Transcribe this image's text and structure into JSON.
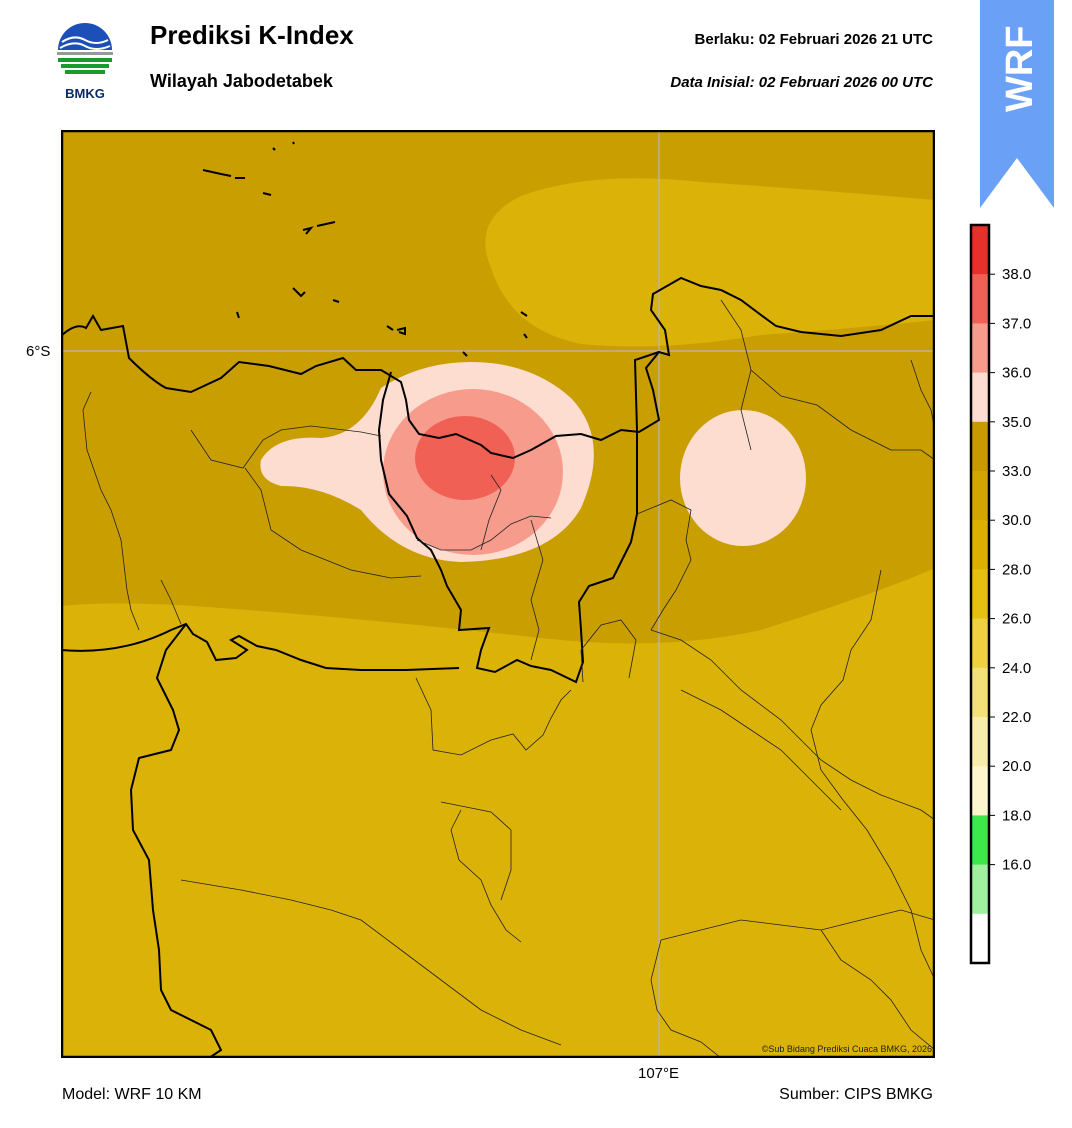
{
  "header": {
    "logo_text": "BMKG",
    "title": "Prediksi K-Index",
    "subtitle": "Wilayah Jabodetabek",
    "valid_label": "Berlaku:  02 Februari 2026 21 UTC",
    "init_label": "Data Inisial:  02 Februari 2026 00 UTC",
    "badge": "WRF"
  },
  "map": {
    "lat_label": "6°S",
    "lon_label": "107°E",
    "copyright": "©Sub Bidang Prediksi Cuaca BMKG, 2026"
  },
  "colorbar": {
    "ticks": [
      "38.0",
      "37.0",
      "36.0",
      "35.0",
      "33.0",
      "30.0",
      "28.0",
      "26.0",
      "24.0",
      "22.0",
      "20.0",
      "18.0",
      "16.0"
    ],
    "bands_top_to_bottom": [
      "#e8302a",
      "#f06055",
      "#f79b8c",
      "#fcddd0",
      "#c99a00",
      "#d4a500",
      "#ddb000",
      "#e6c010",
      "#eed040",
      "#f4e078",
      "#f8ecaa",
      "#fdf6cc",
      "#3ee84a",
      "#a0f0a0",
      "#ffffff"
    ]
  },
  "footer": {
    "model": "Model: WRF 10 KM",
    "source": "Sumber: CIPS BMKG"
  }
}
